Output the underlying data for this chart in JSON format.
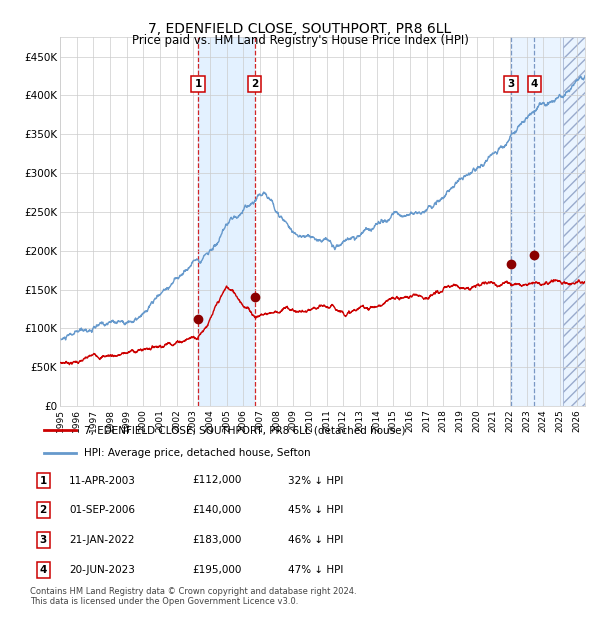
{
  "title": "7, EDENFIELD CLOSE, SOUTHPORT, PR8 6LL",
  "subtitle": "Price paid vs. HM Land Registry's House Price Index (HPI)",
  "red_label": "7, EDENFIELD CLOSE, SOUTHPORT, PR8 6LL (detached house)",
  "blue_label": "HPI: Average price, detached house, Sefton",
  "footer_line1": "Contains HM Land Registry data © Crown copyright and database right 2024.",
  "footer_line2": "This data is licensed under the Open Government Licence v3.0.",
  "transactions": [
    {
      "num": 1,
      "date": "11-APR-2003",
      "price": "£112,000",
      "pct": "32% ↓ HPI",
      "year": 2003.28
    },
    {
      "num": 2,
      "date": "01-SEP-2006",
      "price": "£140,000",
      "pct": "45% ↓ HPI",
      "year": 2006.67
    },
    {
      "num": 3,
      "date": "21-JAN-2022",
      "price": "£183,000",
      "pct": "46% ↓ HPI",
      "year": 2022.06
    },
    {
      "num": 4,
      "date": "20-JUN-2023",
      "price": "£195,000",
      "pct": "47% ↓ HPI",
      "year": 2023.47
    }
  ],
  "ylim": [
    0,
    475000
  ],
  "xlim_start": 1995.0,
  "xlim_end": 2026.5,
  "yticks": [
    0,
    50000,
    100000,
    150000,
    200000,
    250000,
    300000,
    350000,
    400000,
    450000
  ],
  "ytick_labels": [
    "£0",
    "£50K",
    "£100K",
    "£150K",
    "£200K",
    "£250K",
    "£300K",
    "£350K",
    "£400K",
    "£450K"
  ],
  "xtick_years": [
    1995,
    1996,
    1997,
    1998,
    1999,
    2000,
    2001,
    2002,
    2003,
    2004,
    2005,
    2006,
    2007,
    2008,
    2009,
    2010,
    2011,
    2012,
    2013,
    2014,
    2015,
    2016,
    2017,
    2018,
    2019,
    2020,
    2021,
    2022,
    2023,
    2024,
    2025,
    2026
  ],
  "red_color": "#cc0000",
  "blue_color": "#6699cc",
  "dot_color": "#8b0000",
  "bg_color": "#ffffff",
  "grid_color": "#cccccc",
  "shade_color": "#ddeeff",
  "vline_red": "#cc0000",
  "vline_blue": "#6688bb"
}
